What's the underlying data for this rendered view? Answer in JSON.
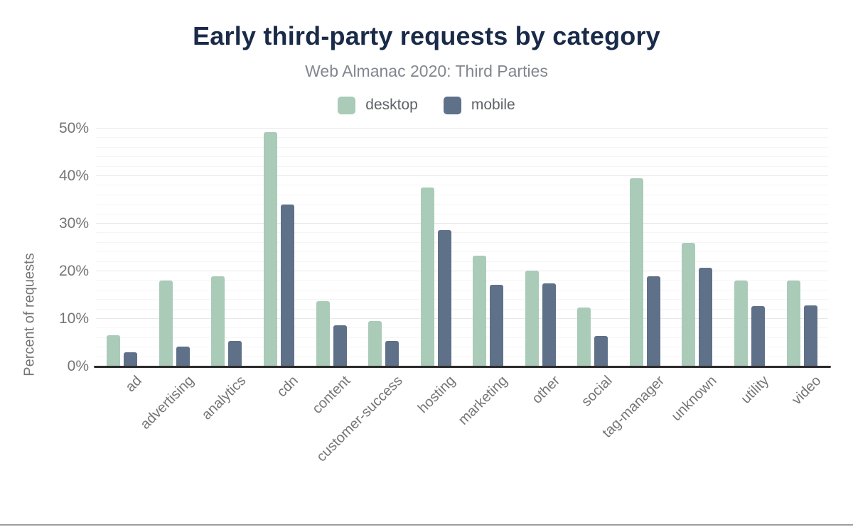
{
  "header": {
    "title": "Early third-party requests by category",
    "subtitle": "Web Almanac 2020: Third Parties"
  },
  "colors": {
    "title": "#1a2b49",
    "subtitle": "#83868e",
    "axis_text": "#757575",
    "legend_text": "#5f6368",
    "axis_line": "#2b2b2b",
    "grid_major": "#e8e8e8",
    "grid_minor": "#f5f5f5",
    "bottom_rule": "#9e9e9e",
    "desktop": "#a9cbb8",
    "mobile": "#5f7089"
  },
  "chart_data": {
    "type": "bar",
    "title": "Early third-party requests by category",
    "subtitle": "Web Almanac 2020: Third Parties",
    "xlabel": "",
    "ylabel": "Percent of requests",
    "ylim": [
      0,
      50
    ],
    "yticks": [
      {
        "label": "0%",
        "value": 0
      },
      {
        "label": "10%",
        "value": 10
      },
      {
        "label": "20%",
        "value": 20
      },
      {
        "label": "30%",
        "value": 30
      },
      {
        "label": "40%",
        "value": 40
      },
      {
        "label": "50%",
        "value": 50
      }
    ],
    "grid": {
      "major_step": 10,
      "minor_step": 2
    },
    "legend_position": "top-center",
    "categories": [
      "ad",
      "advertising",
      "analytics",
      "cdn",
      "content",
      "customer-success",
      "hosting",
      "marketing",
      "other",
      "social",
      "tag-manager",
      "unknown",
      "utility",
      "video"
    ],
    "series": [
      {
        "name": "desktop",
        "color": "#a9cbb8",
        "values": [
          6.6,
          18.0,
          18.9,
          49.3,
          13.8,
          9.6,
          37.6,
          23.3,
          20.1,
          12.4,
          39.5,
          26.0,
          18.0,
          18.0
        ]
      },
      {
        "name": "mobile",
        "color": "#5f7089",
        "values": [
          3.0,
          4.2,
          5.4,
          34.0,
          8.7,
          5.4,
          28.7,
          17.2,
          17.4,
          6.4,
          19.0,
          20.8,
          12.7,
          12.9
        ]
      }
    ]
  }
}
